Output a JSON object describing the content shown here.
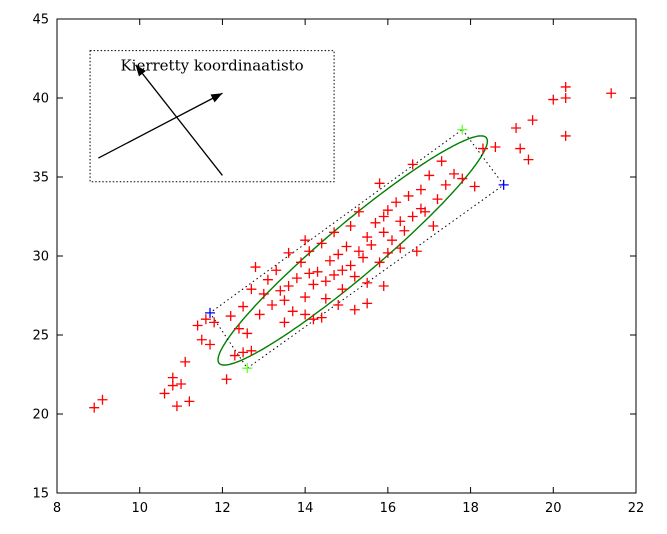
{
  "chart_data": {
    "type": "scatter",
    "title": "",
    "xlabel": "",
    "ylabel": "",
    "xlim": [
      8,
      22
    ],
    "ylim": [
      15,
      45
    ],
    "x_ticks": [
      8,
      10,
      12,
      14,
      16,
      18,
      20,
      22
    ],
    "y_ticks": [
      15,
      20,
      25,
      30,
      35,
      40,
      45
    ],
    "grid": false,
    "legend": "none",
    "colors": {
      "points": "#ff0000",
      "ellipse": "#008000",
      "green_marker": "#66ff33",
      "blue_marker": "#0000ff",
      "box": "#000000"
    },
    "series": [
      {
        "marker": "+",
        "color": "#ff0000",
        "points": [
          [
            8.9,
            20.4
          ],
          [
            9.1,
            20.9
          ],
          [
            10.6,
            21.3
          ],
          [
            10.8,
            21.8
          ],
          [
            10.8,
            22.3
          ],
          [
            10.9,
            20.5
          ],
          [
            11.0,
            21.9
          ],
          [
            11.1,
            23.3
          ],
          [
            11.2,
            20.8
          ],
          [
            11.4,
            25.6
          ],
          [
            11.5,
            24.7
          ],
          [
            11.6,
            26.0
          ],
          [
            11.7,
            24.4
          ],
          [
            11.8,
            25.8
          ],
          [
            12.1,
            22.2
          ],
          [
            12.2,
            26.2
          ],
          [
            12.3,
            23.7
          ],
          [
            12.4,
            25.4
          ],
          [
            12.5,
            23.9
          ],
          [
            12.5,
            26.8
          ],
          [
            12.6,
            25.1
          ],
          [
            12.7,
            24.0
          ],
          [
            12.7,
            27.9
          ],
          [
            12.8,
            29.3
          ],
          [
            12.9,
            26.3
          ],
          [
            13.0,
            27.6
          ],
          [
            13.1,
            28.5
          ],
          [
            13.2,
            26.9
          ],
          [
            13.3,
            29.1
          ],
          [
            13.4,
            27.8
          ],
          [
            13.5,
            27.2
          ],
          [
            13.6,
            28.1
          ],
          [
            13.6,
            30.2
          ],
          [
            13.7,
            26.5
          ],
          [
            13.8,
            28.6
          ],
          [
            13.9,
            29.6
          ],
          [
            14.0,
            27.4
          ],
          [
            14.0,
            31.0
          ],
          [
            14.1,
            28.9
          ],
          [
            14.1,
            30.3
          ],
          [
            14.2,
            26.0
          ],
          [
            14.2,
            28.2
          ],
          [
            14.3,
            29.0
          ],
          [
            14.4,
            30.8
          ],
          [
            14.5,
            28.4
          ],
          [
            14.5,
            27.3
          ],
          [
            14.6,
            29.7
          ],
          [
            14.7,
            31.5
          ],
          [
            14.7,
            28.8
          ],
          [
            14.8,
            30.1
          ],
          [
            14.9,
            29.1
          ],
          [
            14.9,
            27.9
          ],
          [
            15.0,
            30.6
          ],
          [
            15.1,
            31.9
          ],
          [
            15.1,
            29.4
          ],
          [
            15.2,
            28.7
          ],
          [
            15.3,
            30.3
          ],
          [
            15.3,
            32.8
          ],
          [
            15.4,
            29.9
          ],
          [
            15.5,
            31.2
          ],
          [
            15.5,
            28.3
          ],
          [
            15.6,
            30.7
          ],
          [
            15.7,
            32.1
          ],
          [
            15.8,
            29.6
          ],
          [
            15.8,
            34.6
          ],
          [
            15.9,
            31.5
          ],
          [
            16.0,
            30.2
          ],
          [
            16.0,
            32.9
          ],
          [
            16.1,
            31.0
          ],
          [
            16.2,
            33.4
          ],
          [
            16.3,
            30.5
          ],
          [
            16.3,
            32.2
          ],
          [
            16.4,
            31.6
          ],
          [
            16.5,
            33.8
          ],
          [
            16.6,
            32.5
          ],
          [
            16.6,
            35.8
          ],
          [
            16.7,
            30.3
          ],
          [
            16.8,
            34.2
          ],
          [
            16.9,
            32.8
          ],
          [
            17.0,
            35.1
          ],
          [
            17.1,
            31.9
          ],
          [
            17.2,
            33.6
          ],
          [
            17.3,
            36.0
          ],
          [
            17.4,
            34.5
          ],
          [
            17.6,
            35.2
          ],
          [
            17.8,
            34.9
          ],
          [
            18.1,
            34.4
          ],
          [
            18.3,
            36.8
          ],
          [
            18.6,
            36.9
          ],
          [
            19.1,
            38.1
          ],
          [
            19.2,
            36.8
          ],
          [
            19.4,
            36.1
          ],
          [
            19.5,
            38.6
          ],
          [
            20.0,
            39.9
          ],
          [
            20.3,
            40.0
          ],
          [
            20.3,
            40.7
          ],
          [
            20.3,
            37.6
          ],
          [
            21.4,
            40.3
          ],
          [
            15.9,
            28.1
          ],
          [
            15.5,
            27.0
          ],
          [
            15.2,
            26.6
          ],
          [
            14.8,
            26.9
          ],
          [
            14.4,
            26.1
          ],
          [
            14.0,
            26.3
          ],
          [
            13.5,
            25.8
          ],
          [
            15.9,
            32.5
          ],
          [
            16.8,
            33.0
          ]
        ]
      },
      {
        "marker": "+",
        "color": "#66ff33",
        "points": [
          [
            17.8,
            38.0
          ],
          [
            12.6,
            22.9
          ]
        ]
      },
      {
        "marker": "+",
        "color": "#0000ff",
        "points": [
          [
            18.8,
            34.5
          ],
          [
            11.7,
            26.4
          ]
        ]
      }
    ],
    "confidence_ellipse": {
      "center": [
        15.15,
        30.35
      ],
      "major": 7.9,
      "minor": 0.9,
      "angle_deg": 66.5,
      "color": "#008000"
    },
    "bounding_box": {
      "corners": [
        [
          17.8,
          38.0
        ],
        [
          18.8,
          34.5
        ],
        [
          12.6,
          22.9
        ],
        [
          11.7,
          26.4
        ]
      ],
      "style": "dotted"
    },
    "inset": {
      "title": "Kierretty koordinaatisto",
      "arrow_1": {
        "from": [
          9.0,
          36.2
        ],
        "to": [
          12.0,
          40.3
        ]
      },
      "arrow_2": {
        "from": [
          12.0,
          35.1
        ],
        "to": [
          9.9,
          42.1
        ]
      }
    }
  }
}
